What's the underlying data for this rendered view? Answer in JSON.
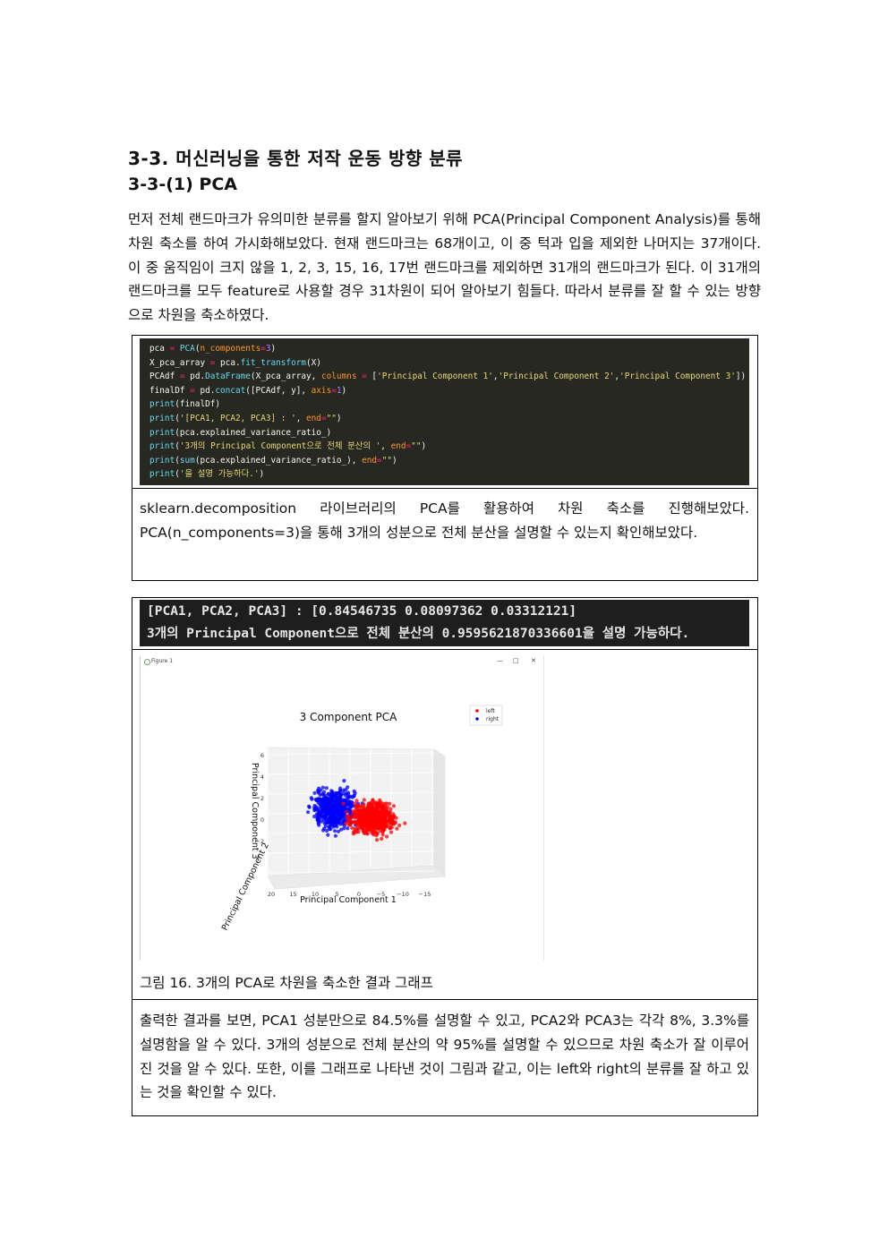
{
  "heading1": "3-3. 머신러닝을 통한 저작 운동 방향 분류",
  "heading2": "3-3-(1) PCA",
  "intro": "먼저 전체 랜드마크가 유의미한 분류를 할지 알아보기 위해 PCA(Principal Component Analysis)를 통해 차원 축소를 하여 가시화해보았다. 현재 랜드마크는 68개이고, 이 중 턱과 입을 제외한 나머지는 37개이다. 이 중 움직임이 크지 않을 1, 2, 3, 15, 16, 17번 랜드마크를 제외하면 31개의 랜드마크가 된다. 이 31개의 랜드마크를 모두 feature로 사용할 경우 31차원이 되어 알아보기 힘들다. 따라서 분류를 잘 할 수 있는 방향으로 차원을 축소하였다.",
  "code_lines": [
    "pca = PCA(n_components=3)",
    "X_pca_array = pca.fit_transform(X)",
    "PCAdf = pd.DataFrame(X_pca_array, columns = ['Principal Component 1','Principal Component 2','Principal Component 3'])",
    "finalDf = pd.concat([PCAdf, y], axis=1)",
    "print(finalDf)",
    "print('[PCA1, PCA2, PCA3] : ', end=\"\")",
    "print(pca.explained_variance_ratio_)",
    "print('3개의 Principal Component으로 전체 분산의 ', end=\"\")",
    "print(sum(pca.explained_variance_ratio_), end=\"\")",
    "print('을 설명 가능하다.')"
  ],
  "code_desc": "sklearn.decomposition 라이브러리의 PCA를 활용하여 차원 축소를 진행해보았다. PCA(n_components=3)을 통해 3개의 성분으로 전체 분산을 설명할 수 있는지 확인해보았다.",
  "output_lines": [
    "[PCA1, PCA2, PCA3] : [0.84546735 0.08097362 0.03312121]",
    "3개의 Principal Component으로 전체 분산의 0.9595621870336601을 설명 가능하다."
  ],
  "figure": {
    "window_title": "Figure 1",
    "window_controls": [
      "—",
      "□",
      "✕"
    ]
  },
  "chart_data": {
    "type": "scatter",
    "title": "3 Component PCA",
    "xlabel": "Principal Component 1",
    "ylabel": "Principal Component 2",
    "zlabel": "Principal Component 3",
    "x_ticks": [
      "20",
      "15",
      "10",
      "5",
      "0",
      "−5",
      "−10",
      "−15"
    ],
    "z_ticks": [
      "6",
      "4",
      "2",
      "0",
      "−2"
    ],
    "legend": {
      "entries": [
        "left",
        "right"
      ],
      "position": "top-right"
    },
    "series": [
      {
        "name": "left",
        "color": "#ff0000",
        "center": [
          -3,
          0.4
        ],
        "spread": [
          6,
          1.8
        ]
      },
      {
        "name": "right",
        "color": "#0000ff",
        "center": [
          6,
          1.2
        ],
        "spread": [
          6,
          2.2
        ]
      }
    ],
    "grid": true
  },
  "figure_caption": "그림 16. 3개의 PCA로 차원을 축소한 결과 그래프",
  "result_desc": "출력한 결과를 보면, PCA1 성분만으로 84.5%를 설명할 수 있고, PCA2와 PCA3는 각각 8%, 3.3%를 설명함을 알 수 있다. 3개의 성분으로 전체 분산의 약 95%를 설명할 수 있으므로 차원 축소가 잘 이루어진 것을 알 수 있다. 또한, 이를 그래프로 나타낸 것이 그림과 같고, 이는 left와 right의 분류를 잘 하고 있는 것을 확인할 수 있다."
}
